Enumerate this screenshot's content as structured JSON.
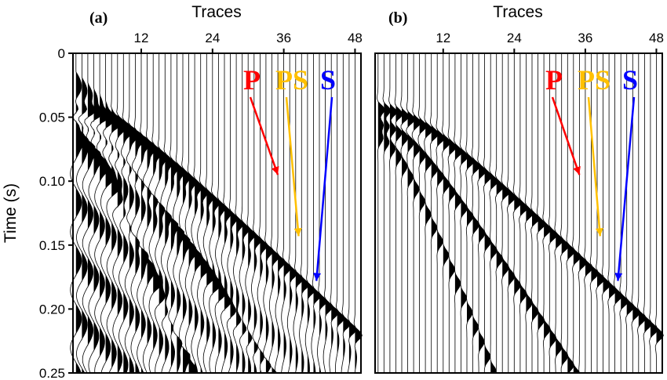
{
  "chart_data": {
    "type": "seismogram",
    "x_axis": {
      "label": "Traces",
      "ticks": [
        12,
        24,
        36,
        48
      ],
      "range": [
        1,
        48
      ]
    },
    "y_axis": {
      "label": "Time (s)",
      "ticks": [
        "0",
        "0.05",
        "0.10",
        "0.15",
        "0.20",
        "0.25"
      ],
      "tick_values": [
        0,
        0.05,
        0.1,
        0.15,
        0.2,
        0.25
      ],
      "range": [
        0,
        0.25
      ]
    },
    "panels": [
      {
        "label": "(a)",
        "arrivals": [
          {
            "name": "P",
            "color": "#ff0000",
            "label_trace": 35,
            "label_time": 0.025,
            "tip_trace": 35,
            "tip_time": 0.095
          },
          {
            "name": "PS",
            "color": "#ffc000",
            "label_trace": 38,
            "label_time": 0.025,
            "tip_trace": 38.5,
            "tip_time": 0.143
          },
          {
            "name": "S",
            "color": "#0000ff",
            "label_trace": 43,
            "label_time": 0.025,
            "tip_trace": 41.5,
            "tip_time": 0.178
          }
        ]
      },
      {
        "label": "(b)",
        "arrivals": [
          {
            "name": "P",
            "color": "#ff0000",
            "label_trace": 35,
            "label_time": 0.025,
            "tip_trace": 35,
            "tip_time": 0.095
          },
          {
            "name": "PS",
            "color": "#ffc000",
            "label_trace": 38,
            "label_time": 0.025,
            "tip_trace": 38.5,
            "tip_time": 0.143
          },
          {
            "name": "S",
            "color": "#0000ff",
            "label_trace": 43,
            "label_time": 0.025,
            "tip_trace": 41.5,
            "tip_time": 0.178
          }
        ]
      }
    ]
  }
}
